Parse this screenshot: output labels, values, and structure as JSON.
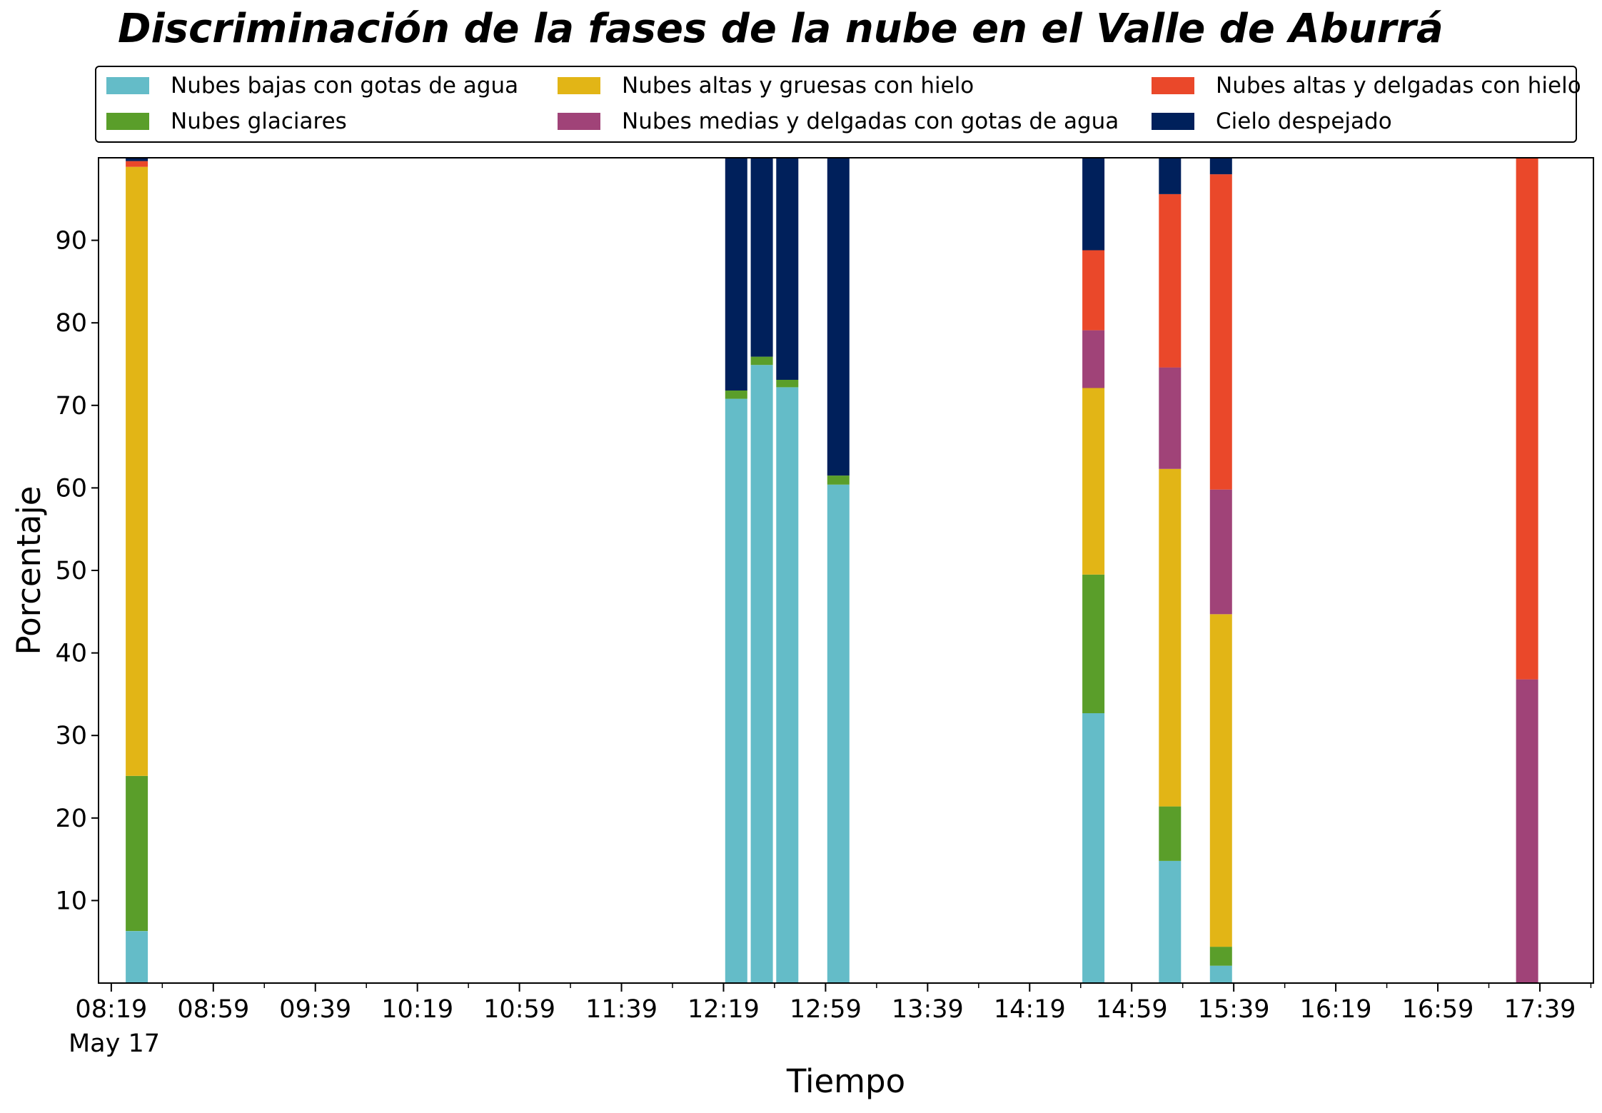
{
  "chart_data": {
    "type": "bar",
    "stacked": true,
    "title": "Discriminación de la fases de la nube en el Valle de Aburrá",
    "xlabel": "Tiempo",
    "ylabel": "Porcentaje",
    "ylim": [
      0,
      100
    ],
    "yticks": [
      10,
      20,
      30,
      40,
      50,
      60,
      70,
      80,
      90
    ],
    "xlim": [
      "08:14",
      "18:00"
    ],
    "xticks": [
      "08:19",
      "08:59",
      "09:39",
      "10:19",
      "10:59",
      "11:39",
      "12:19",
      "12:59",
      "13:39",
      "14:19",
      "14:59",
      "15:39",
      "16:19",
      "16:59",
      "17:39"
    ],
    "date_label": "May 17",
    "grid": false,
    "legend_position": "top",
    "times": [
      "08:29",
      "12:24",
      "12:34",
      "12:44",
      "13:04",
      "14:44",
      "15:14",
      "15:34",
      "17:34"
    ],
    "series": [
      {
        "name": "Nubes bajas con gotas de agua",
        "color": "#64bcc8",
        "values": [
          6.3,
          70.8,
          74.9,
          72.2,
          60.4,
          32.7,
          14.8,
          2.1,
          0
        ]
      },
      {
        "name": "Nubes glaciares",
        "color": "#5a9e2a",
        "values": [
          18.8,
          1.0,
          1.0,
          0.9,
          1.1,
          16.8,
          6.6,
          2.3,
          0
        ]
      },
      {
        "name": "Nubes altas y gruesas con hielo",
        "color": "#e2b516",
        "values": [
          73.8,
          0,
          0,
          0,
          0,
          22.6,
          40.9,
          40.3,
          0
        ]
      },
      {
        "name": "Nubes medias y delgadas con gotas de agua",
        "color": "#a04378",
        "values": [
          0,
          0,
          0,
          0,
          0,
          7.0,
          12.3,
          15.1,
          36.8
        ]
      },
      {
        "name": "Nubes altas y delgadas con hielo",
        "color": "#ea482a",
        "values": [
          0.7,
          0,
          0,
          0,
          0,
          9.7,
          21.0,
          38.2,
          63.2
        ]
      },
      {
        "name": "Cielo despejado",
        "color": "#00205b",
        "values": [
          0.4,
          28.2,
          24.1,
          26.9,
          38.5,
          11.2,
          4.4,
          2.0,
          0
        ]
      }
    ]
  }
}
